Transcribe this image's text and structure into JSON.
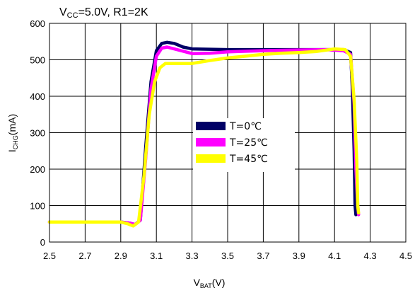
{
  "chart_data": {
    "type": "line",
    "title": "VCC=5.0V, R1=2K",
    "title_parts": {
      "main": "V",
      "sub": "CC",
      "rest": "=5.0V, R1=2K"
    },
    "xlabel": "VBAT(V)",
    "xlabel_parts": {
      "main": "V",
      "sub": "BAT",
      "rest": "(V)"
    },
    "ylabel": "ICHG(mA)",
    "ylabel_parts": {
      "main": "I",
      "sub": "CHG",
      "rest": "(mA)"
    },
    "xlim": [
      2.5,
      4.5
    ],
    "ylim": [
      0,
      600
    ],
    "x_ticks": [
      "2.5",
      "2.7",
      "2.9",
      "3.1",
      "3.3",
      "3.5",
      "3.7",
      "3.9",
      "4.1",
      "4.3",
      "4.5"
    ],
    "y_ticks": [
      "0",
      "100",
      "200",
      "300",
      "400",
      "500",
      "600"
    ],
    "grid": true,
    "legend_position": "center-right",
    "series": [
      {
        "name": "T=0℃",
        "color": "#000066",
        "points": [
          [
            2.5,
            55
          ],
          [
            2.9,
            55
          ],
          [
            2.95,
            52
          ],
          [
            2.98,
            48
          ],
          [
            3.01,
            60
          ],
          [
            3.04,
            260
          ],
          [
            3.07,
            440
          ],
          [
            3.1,
            525
          ],
          [
            3.13,
            545
          ],
          [
            3.16,
            548
          ],
          [
            3.2,
            545
          ],
          [
            3.25,
            535
          ],
          [
            3.3,
            530
          ],
          [
            3.5,
            528
          ],
          [
            3.7,
            528
          ],
          [
            3.9,
            528
          ],
          [
            4.05,
            528
          ],
          [
            4.15,
            528
          ],
          [
            4.19,
            520
          ],
          [
            4.2,
            420
          ],
          [
            4.21,
            250
          ],
          [
            4.215,
            100
          ],
          [
            4.22,
            75
          ]
        ]
      },
      {
        "name": "T=25℃",
        "color": "#ff00ff",
        "points": [
          [
            2.5,
            55
          ],
          [
            2.9,
            55
          ],
          [
            2.95,
            52
          ],
          [
            2.98,
            48
          ],
          [
            3.01,
            60
          ],
          [
            3.04,
            230
          ],
          [
            3.07,
            420
          ],
          [
            3.1,
            510
          ],
          [
            3.13,
            532
          ],
          [
            3.16,
            535
          ],
          [
            3.2,
            530
          ],
          [
            3.3,
            517
          ],
          [
            3.4,
            518
          ],
          [
            3.5,
            522
          ],
          [
            3.7,
            525
          ],
          [
            3.9,
            527
          ],
          [
            4.05,
            528
          ],
          [
            4.15,
            525
          ],
          [
            4.19,
            515
          ],
          [
            4.21,
            380
          ],
          [
            4.22,
            200
          ],
          [
            4.23,
            100
          ],
          [
            4.235,
            75
          ]
        ]
      },
      {
        "name": "T=45℃",
        "color": "#ffff00",
        "points": [
          [
            2.5,
            55
          ],
          [
            2.9,
            55
          ],
          [
            2.94,
            50
          ],
          [
            2.97,
            44
          ],
          [
            3.0,
            55
          ],
          [
            3.03,
            180
          ],
          [
            3.06,
            350
          ],
          [
            3.09,
            440
          ],
          [
            3.12,
            478
          ],
          [
            3.15,
            490
          ],
          [
            3.2,
            490
          ],
          [
            3.3,
            490
          ],
          [
            3.4,
            498
          ],
          [
            3.5,
            505
          ],
          [
            3.6,
            510
          ],
          [
            3.7,
            515
          ],
          [
            3.8,
            518
          ],
          [
            3.9,
            520
          ],
          [
            4.0,
            523
          ],
          [
            4.1,
            530
          ],
          [
            4.16,
            528
          ],
          [
            4.19,
            510
          ],
          [
            4.21,
            390
          ],
          [
            4.225,
            220
          ],
          [
            4.23,
            100
          ],
          [
            4.235,
            80
          ]
        ]
      }
    ]
  }
}
